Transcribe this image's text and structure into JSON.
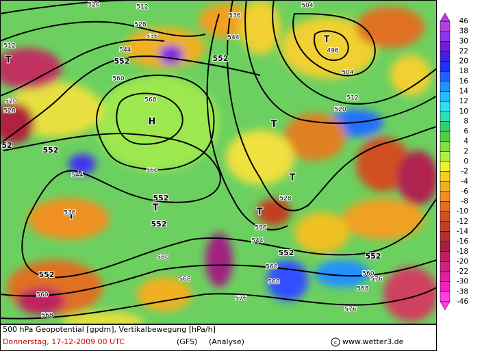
{
  "map": {
    "contour_labels": [
      "520",
      "512",
      "528",
      "536",
      "544",
      "552",
      "552",
      "560",
      "568",
      "H",
      "560",
      "552",
      "544",
      "T",
      "552",
      "T",
      "552",
      "536",
      "544",
      "T",
      "496",
      "504",
      "512",
      "520",
      "T",
      "T",
      "528",
      "T",
      "536",
      "544",
      "552",
      "552",
      "560",
      "568",
      "576",
      "580",
      "568",
      "576",
      "552",
      "560",
      "568",
      "T",
      "512",
      "520",
      "528",
      "52",
      "504",
      "576",
      "560",
      "568",
      "536"
    ],
    "legend": {
      "labels": [
        "46",
        "38",
        "30",
        "22",
        "20",
        "18",
        "16",
        "14",
        "12",
        "10",
        "8",
        "6",
        "4",
        "2",
        "0",
        "-2",
        "-4",
        "-6",
        "-8",
        "-10",
        "-12",
        "-14",
        "-16",
        "-18",
        "-20",
        "-22",
        "-30",
        "-38",
        "-46"
      ],
      "colors": [
        "#b040e0",
        "#9030f0",
        "#7020d0",
        "#4020e0",
        "#2030ff",
        "#2060ff",
        "#2090ff",
        "#20c0ff",
        "#30e0f0",
        "#30e0b0",
        "#30d070",
        "#50d040",
        "#80e040",
        "#b0f040",
        "#f0f030",
        "#f0d020",
        "#f0b020",
        "#f09020",
        "#e07020",
        "#d05020",
        "#c04020",
        "#b03030",
        "#a02040",
        "#c02060",
        "#d02080",
        "#e020a0",
        "#f020c0",
        "#ff40e0"
      ]
    },
    "footer": {
      "title": "500 hPa Geopotential [gpdm], Vertikalbewegung [hPa/h]",
      "date": "Donnerstag, 17-12-2009  00 UTC",
      "model": "(GFS)",
      "run": "(Analyse)",
      "copyright": "www.wetter3.de"
    }
  }
}
